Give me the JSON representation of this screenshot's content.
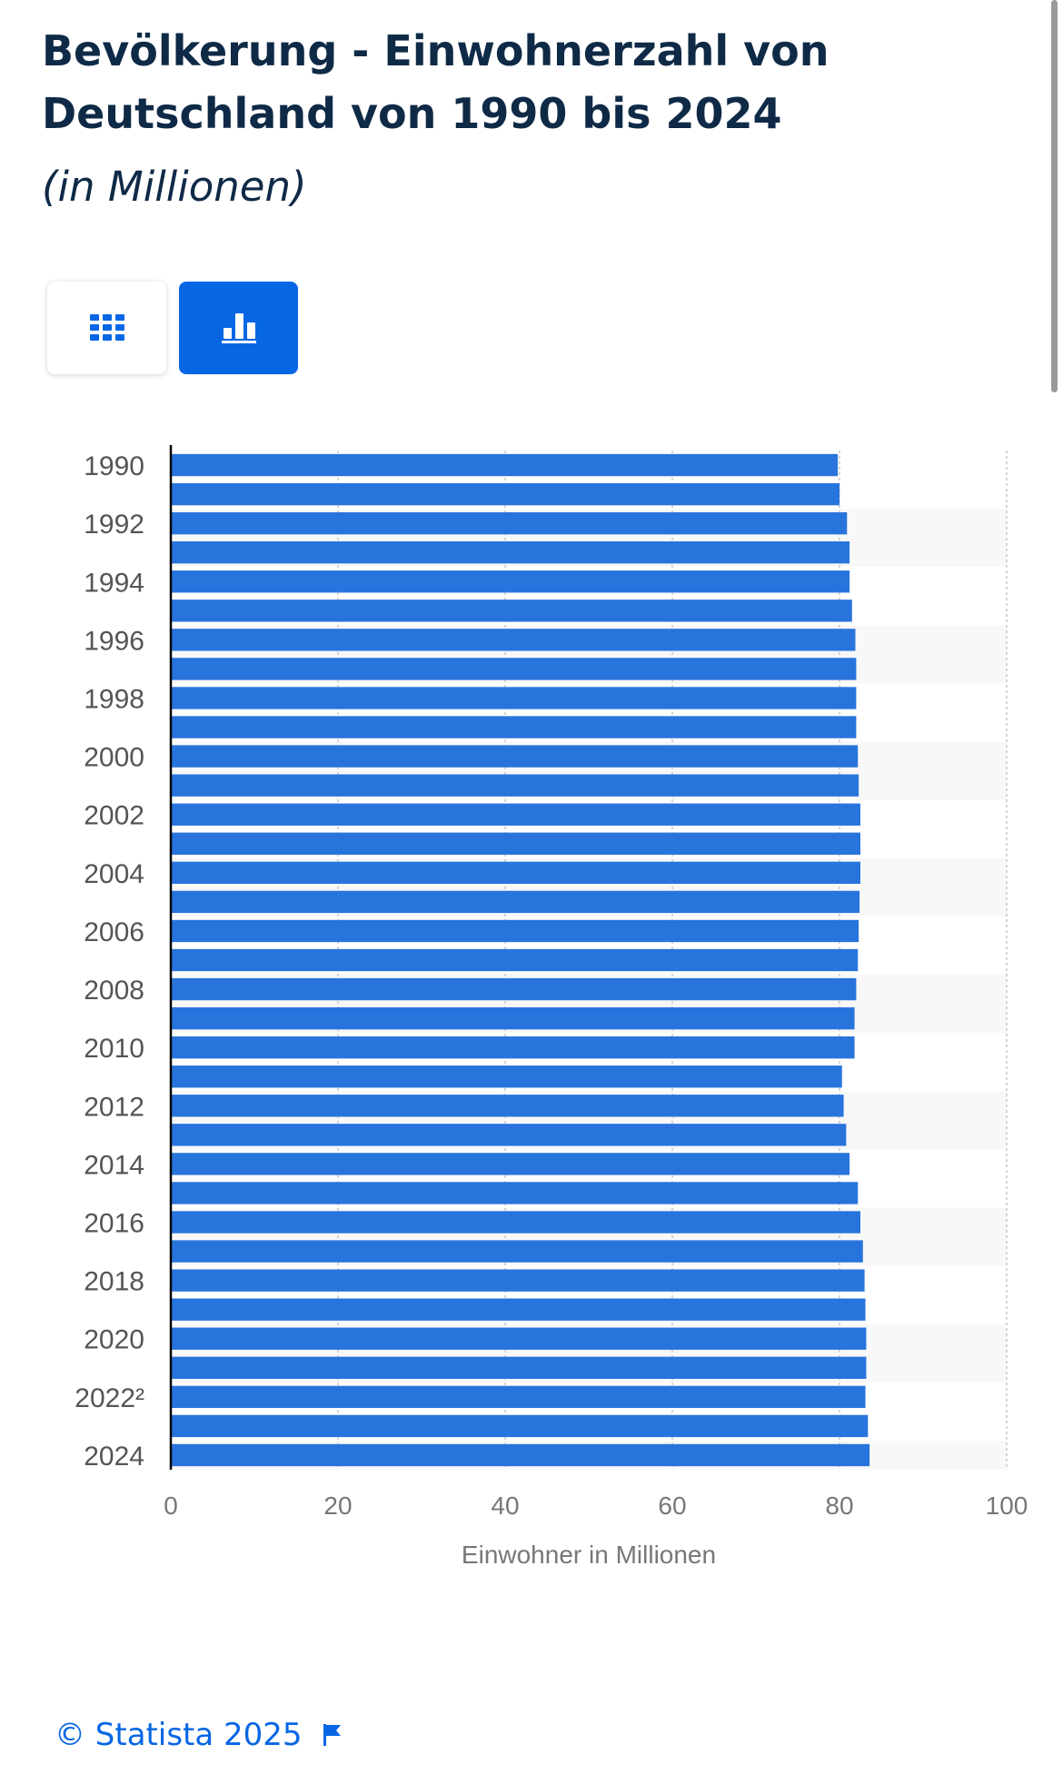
{
  "header": {
    "title": "Bevölkerung - Einwohnerzahl von Deutschland von 1990 bis 2024",
    "subtitle": "(in Millionen)"
  },
  "toolbar": {
    "table_icon": "grid-icon",
    "chart_icon": "bar-chart-icon",
    "active": "chart"
  },
  "colors": {
    "bar": "#2874dd",
    "accent": "#0666e4",
    "band": "#f8f8f8",
    "title": "#0f2a46"
  },
  "chart_data": {
    "type": "bar",
    "orientation": "horizontal",
    "categories": [
      "1990",
      "1991",
      "1992",
      "1993",
      "1994",
      "1995",
      "1996",
      "1997",
      "1998",
      "1999",
      "2000",
      "2001",
      "2002",
      "2003",
      "2004",
      "2005",
      "2006",
      "2007",
      "2008",
      "2009",
      "2010",
      "2011",
      "2012",
      "2013",
      "2014",
      "2015",
      "2016",
      "2017",
      "2018",
      "2019",
      "2020",
      "2021",
      "2022²",
      "2023",
      "2024"
    ],
    "tick_labels_shown": [
      "1990",
      "1992",
      "1994",
      "1996",
      "1998",
      "2000",
      "2002",
      "2004",
      "2006",
      "2008",
      "2010",
      "2012",
      "2014",
      "2016",
      "2018",
      "2020",
      "2022²",
      "2024"
    ],
    "values": [
      79.8,
      80.0,
      80.9,
      81.2,
      81.2,
      81.5,
      81.9,
      82.0,
      82.0,
      82.0,
      82.2,
      82.3,
      82.5,
      82.5,
      82.5,
      82.4,
      82.3,
      82.2,
      82.0,
      81.8,
      81.8,
      80.3,
      80.5,
      80.8,
      81.2,
      82.2,
      82.5,
      82.8,
      83.0,
      83.1,
      83.2,
      83.2,
      83.1,
      83.4,
      83.6
    ],
    "xlabel": "Einwohner in Millionen",
    "ylabel": "",
    "xlim": [
      0,
      100
    ],
    "xticks": [
      0,
      20,
      40,
      60,
      80,
      100
    ],
    "grid": true
  },
  "footer": {
    "copyright": "© Statista 2025",
    "flag_icon": "flag-icon"
  }
}
